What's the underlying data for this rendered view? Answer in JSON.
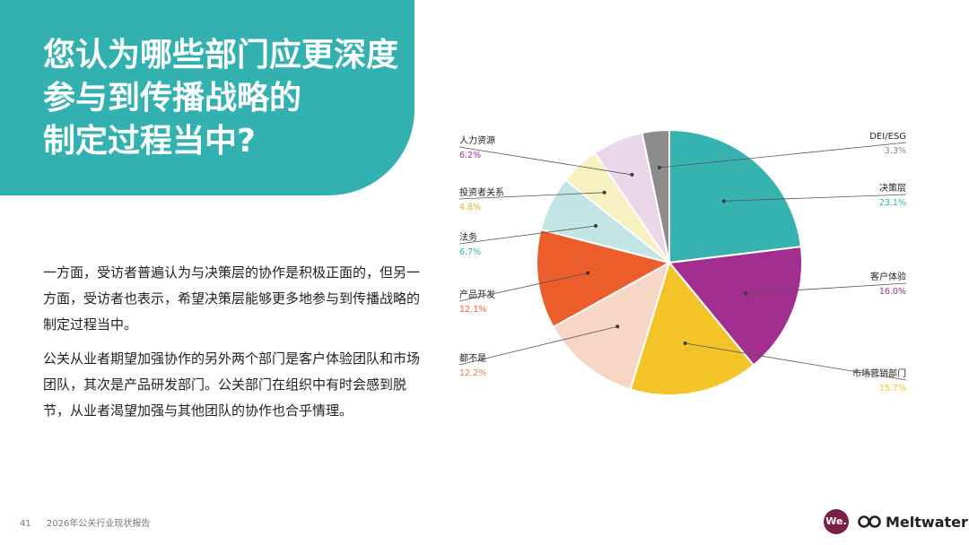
{
  "header": {
    "title_lines": [
      "您认为哪些部门应更深度",
      "参与到传播战略的",
      "制定过程当中?"
    ]
  },
  "body": {
    "paragraphs": [
      "一方面，受访者普遍认为与决策层的协作是积极正面的，但另一方面，受访者也表示，希望决策层能够更多地参与到传播战略的制定过程当中。",
      "公关从业者期望加强协作的另外两个部门是客户体验团队和市场团队，其次是产品研发部门。公关部门在组织中有时会感到脱节，从业者渴望加强与其他团队的协作也合乎情理。"
    ]
  },
  "footer": {
    "page_number": "41",
    "report_name": "2026年公关行业现状报告"
  },
  "branding": {
    "we_logo_text": "We.",
    "meltwater_text": "Meltwater"
  },
  "chart_data": {
    "type": "pie",
    "start": "12 o'clock, clockwise",
    "slices": [
      {
        "label": "决策层",
        "value": 23.1,
        "value_label": "23.1%",
        "color": "#36b2b1"
      },
      {
        "label": "客户体验",
        "value": 16.0,
        "value_label": "16.0%",
        "color": "#a22f8f"
      },
      {
        "label": "市场营销部门",
        "value": 15.7,
        "value_label": "15.7%",
        "color": "#f2c428"
      },
      {
        "label": "都不是",
        "value": 12.2,
        "value_label": "12.2%",
        "color": "#f8d6c6"
      },
      {
        "label": "产品开发",
        "value": 12.1,
        "value_label": "12.1%",
        "color": "#eb5e2c"
      },
      {
        "label": "法务",
        "value": 6.7,
        "value_label": "6.7%",
        "color": "#c3e5e6"
      },
      {
        "label": "投资者关系",
        "value": 4.8,
        "value_label": "4.8%",
        "color": "#f7f0c0"
      },
      {
        "label": "人力资源",
        "value": 6.2,
        "value_label": "6.2%",
        "color": "#ecd7ea"
      },
      {
        "label": "DEI/ESG",
        "value": 3.3,
        "value_label": "3.3%",
        "color": "#8c8c8c"
      }
    ]
  }
}
